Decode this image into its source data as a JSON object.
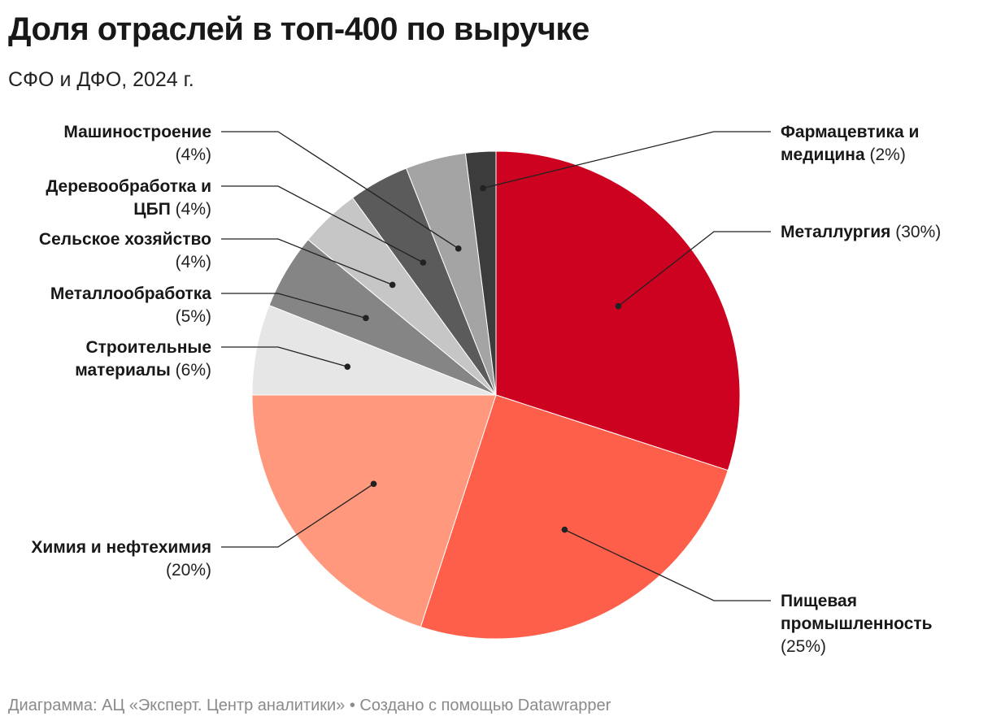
{
  "title": "Доля отраслей в топ-400 по выручке",
  "subtitle": "СФО и ДФО, 2024 г.",
  "footer": "Диаграмма: АЦ «Эксперт. Центр аналитики» • Создано с помощью Datawrapper",
  "chart_data": {
    "type": "pie",
    "title": "Доля отраслей в топ-400 по выручке",
    "subtitle": "СФО и ДФО, 2024 г.",
    "unit": "%",
    "slices": [
      {
        "label": "Металлургия",
        "value": 30,
        "pct_text": "(30%)",
        "color": "#cc0220"
      },
      {
        "label": "Пищевая промышленность",
        "value": 25,
        "pct_text": "(25%)",
        "color": "#fe5f4b"
      },
      {
        "label": "Химия и нефтехимия",
        "value": 20,
        "pct_text": "(20%)",
        "color": "#ff987c"
      },
      {
        "label": "Строительные материалы",
        "value": 6,
        "pct_text": "(6%)",
        "color": "#e6e6e6"
      },
      {
        "label": "Металлообработка",
        "value": 5,
        "pct_text": "(5%)",
        "color": "#858585"
      },
      {
        "label": "Сельское хозяйство",
        "value": 4,
        "pct_text": "(4%)",
        "color": "#c6c6c6"
      },
      {
        "label": "Деревообработка и ЦБП",
        "value": 4,
        "pct_text": "(4%)",
        "color": "#5b5b5b"
      },
      {
        "label": "Машиностроение",
        "value": 4,
        "pct_text": "(4%)",
        "color": "#a4a4a4"
      },
      {
        "label": "Фармацевтика и медицина",
        "value": 2,
        "pct_text": "(2%)",
        "color": "#3c3c3c"
      }
    ]
  }
}
